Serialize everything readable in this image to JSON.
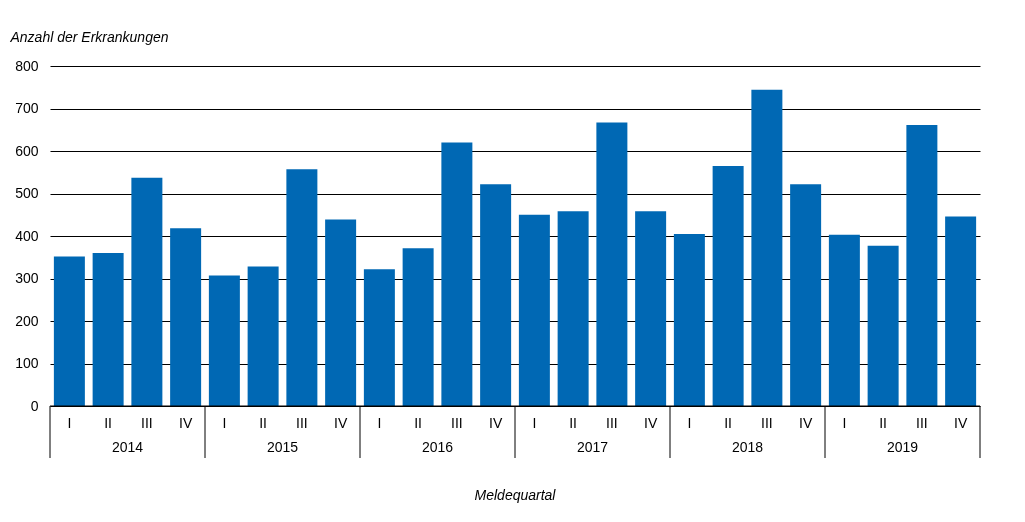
{
  "chart_data": {
    "type": "bar",
    "categories": [
      "I",
      "II",
      "III",
      "IV",
      "I",
      "II",
      "III",
      "IV",
      "I",
      "II",
      "III",
      "IV",
      "I",
      "II",
      "III",
      "IV",
      "I",
      "II",
      "III",
      "IV",
      "I",
      "II",
      "III",
      "IV"
    ],
    "values": [
      352,
      360,
      537,
      418,
      307,
      328,
      557,
      439,
      322,
      371,
      620,
      522,
      450,
      458,
      667,
      458,
      405,
      565,
      744,
      522,
      403,
      377,
      661,
      446
    ],
    "color": "#0068b4",
    "ylabel": "Anzahl der Erkrankungen",
    "xlabel": "Meldequartal",
    "annotations": [
      "2014",
      "2015",
      "2016",
      "2017",
      "2018",
      "2019"
    ],
    "ylim": [
      0,
      800
    ],
    "yticks": [
      0,
      100,
      200,
      300,
      400,
      500,
      600,
      700,
      800
    ],
    "grid": "y"
  }
}
